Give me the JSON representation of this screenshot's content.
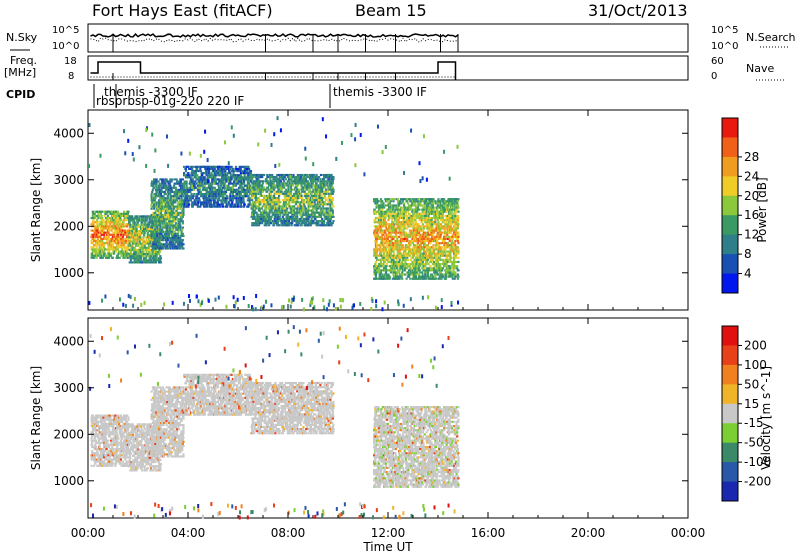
{
  "header": {
    "station": "Fort Hays East (fitACF)",
    "beam": "Beam 15",
    "date": "31/Oct/2013"
  },
  "noise_panel": {
    "left_label": "N.Sky",
    "left_ticks": [
      "10^5",
      "10^0"
    ],
    "right_label": "N.Search",
    "right_ticks": [
      "10^5",
      "10^0"
    ]
  },
  "freq_panel": {
    "left_label_1": "Freq.",
    "left_label_2": "[MHz]",
    "left_ticks": [
      "18",
      "8"
    ],
    "right_label": "Nave",
    "right_ticks": [
      "60",
      "0"
    ]
  },
  "cpid": {
    "label": "CPID",
    "entries": [
      "themis -3300 IF",
      "rbsprbsp-01g-220 220 IF",
      "themis -3300 IF"
    ]
  },
  "time_axis": {
    "label": "Time UT",
    "ticks": [
      "00:00",
      "04:00",
      "08:00",
      "12:00",
      "16:00",
      "20:00",
      "00:00"
    ]
  },
  "chart_data": [
    {
      "type": "heatmap",
      "name": "power",
      "ylabel": "Slant Range [km]",
      "y_ticks": [
        "1000",
        "2000",
        "3000",
        "4000"
      ],
      "ylim": [
        200,
        4500
      ],
      "xlim_hours": [
        0,
        24
      ],
      "colorbar_label": "Power [dB]",
      "colorbar_ticks": [
        "4",
        "8",
        "12",
        "16",
        "20",
        "24",
        "28"
      ],
      "colors": [
        "#0018ee",
        "#1a50b4",
        "#2f7f8a",
        "#3a9a64",
        "#8cc83c",
        "#f0cc28",
        "#f09c20",
        "#f06018",
        "#e81a10"
      ],
      "bands": [
        {
          "t": [
            0.1,
            1.6
          ],
          "r": [
            1300,
            2300
          ],
          "level": 0.85
        },
        {
          "t": [
            1.6,
            2.9
          ],
          "r": [
            1200,
            2200
          ],
          "level": 0.6
        },
        {
          "t": [
            2.5,
            3.8
          ],
          "r": [
            1500,
            3000
          ],
          "level": 0.45
        },
        {
          "t": [
            3.8,
            6.5
          ],
          "r": [
            2400,
            3300
          ],
          "level": 0.3
        },
        {
          "t": [
            6.5,
            9.8
          ],
          "r": [
            2000,
            3100
          ],
          "level": 0.5
        },
        {
          "t": [
            11.4,
            14.8
          ],
          "r": [
            850,
            2600
          ],
          "level": 0.75
        }
      ]
    },
    {
      "type": "heatmap",
      "name": "velocity",
      "ylabel": "Slant Range [km]",
      "y_ticks": [
        "1000",
        "2000",
        "3000",
        "4000"
      ],
      "ylim": [
        200,
        4500
      ],
      "xlim_hours": [
        0,
        24
      ],
      "colorbar_label": "Velocity [m s^-1]",
      "colorbar_ticks": [
        "200",
        "100",
        "50",
        "15",
        "-15",
        "-50",
        "-100",
        "-200"
      ],
      "colors": [
        "#1a28b0",
        "#2a58a8",
        "#3a8a6a",
        "#7ccf32",
        "#c8c8c8",
        "#f0b428",
        "#f08020",
        "#e84018",
        "#e01010"
      ],
      "bands": [
        {
          "t": [
            0.1,
            1.6
          ],
          "r": [
            1300,
            2400
          ],
          "level": 0.5
        },
        {
          "t": [
            1.6,
            2.9
          ],
          "r": [
            1200,
            2200
          ],
          "level": 0.5
        },
        {
          "t": [
            2.5,
            3.8
          ],
          "r": [
            1500,
            3000
          ],
          "level": 0.5
        },
        {
          "t": [
            3.8,
            6.5
          ],
          "r": [
            2400,
            3300
          ],
          "level": 0.5
        },
        {
          "t": [
            6.5,
            9.8
          ],
          "r": [
            2000,
            3100
          ],
          "level": 0.5
        },
        {
          "t": [
            11.4,
            14.8
          ],
          "r": [
            850,
            2600
          ],
          "level": 0.35
        }
      ]
    }
  ]
}
